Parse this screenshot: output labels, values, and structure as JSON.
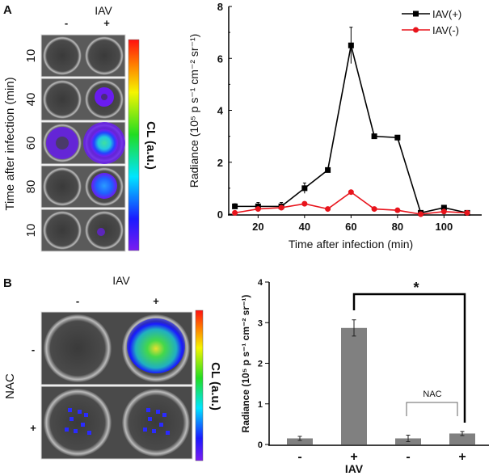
{
  "panelA": {
    "letter": "A",
    "image_header": "IAV",
    "col_labels": [
      "-",
      "+"
    ],
    "row_labels": [
      "10",
      "40",
      "60",
      "80",
      "10"
    ],
    "row_axis_label": "Time after infection (min)",
    "colorbar_label": "CL (a.u.)"
  },
  "panelB": {
    "letter": "B",
    "image_header": "IAV",
    "col_labels": [
      "-",
      "+"
    ],
    "row_labels": [
      "-",
      "+"
    ],
    "row_axis_label": "NAC",
    "colorbar_label": "CL (a.u.)"
  },
  "colors": {
    "iav_pos": "#000000",
    "iav_neg": "#e8141c",
    "bar": "#808080"
  },
  "chart_data": [
    {
      "type": "line",
      "xlabel": "Time after infection (min)",
      "ylabel": "Radiance (10⁵ p s⁻¹ cm⁻² sr⁻¹)",
      "xlim": [
        5,
        115
      ],
      "ylim": [
        0,
        8
      ],
      "xticks": [
        "20",
        "40",
        "60",
        "80",
        "100"
      ],
      "yticks": [
        "0",
        "2",
        "4",
        "6",
        "8"
      ],
      "legend": "top-right",
      "x": [
        10,
        20,
        30,
        40,
        50,
        60,
        70,
        80,
        90,
        100,
        110
      ],
      "series": [
        {
          "name": "IAV(+)",
          "marker": "square",
          "values": [
            0.3,
            0.3,
            0.3,
            1.0,
            1.7,
            6.5,
            3.0,
            2.95,
            0.05,
            0.25,
            0.05
          ],
          "errors": [
            0.1,
            0.15,
            0.15,
            0.2,
            0.05,
            0.7,
            0.05,
            0.05,
            0.05,
            0.05,
            0.05
          ]
        },
        {
          "name": "IAV(-)",
          "marker": "circle",
          "values": [
            0.05,
            0.2,
            0.25,
            0.4,
            0.2,
            0.85,
            0.2,
            0.15,
            0.0,
            0.1,
            0.05
          ],
          "errors": [
            0.03,
            0.03,
            0.03,
            0.03,
            0.03,
            0.05,
            0.03,
            0.03,
            0.02,
            0.03,
            0.02
          ]
        }
      ]
    },
    {
      "type": "bar",
      "xlabel": "IAV",
      "ylabel": "Radiance (10⁵ p s⁻¹ cm⁻² sr⁻¹)",
      "ylim": [
        0,
        4
      ],
      "yticks": [
        "0",
        "1",
        "2",
        "3",
        "4"
      ],
      "categories": [
        "-",
        "+",
        "-",
        "+"
      ],
      "values": [
        0.15,
        2.87,
        0.15,
        0.27
      ],
      "errors": [
        0.05,
        0.2,
        0.08,
        0.05
      ],
      "annotations": {
        "significance": "*",
        "group_label": "NAC"
      }
    }
  ]
}
